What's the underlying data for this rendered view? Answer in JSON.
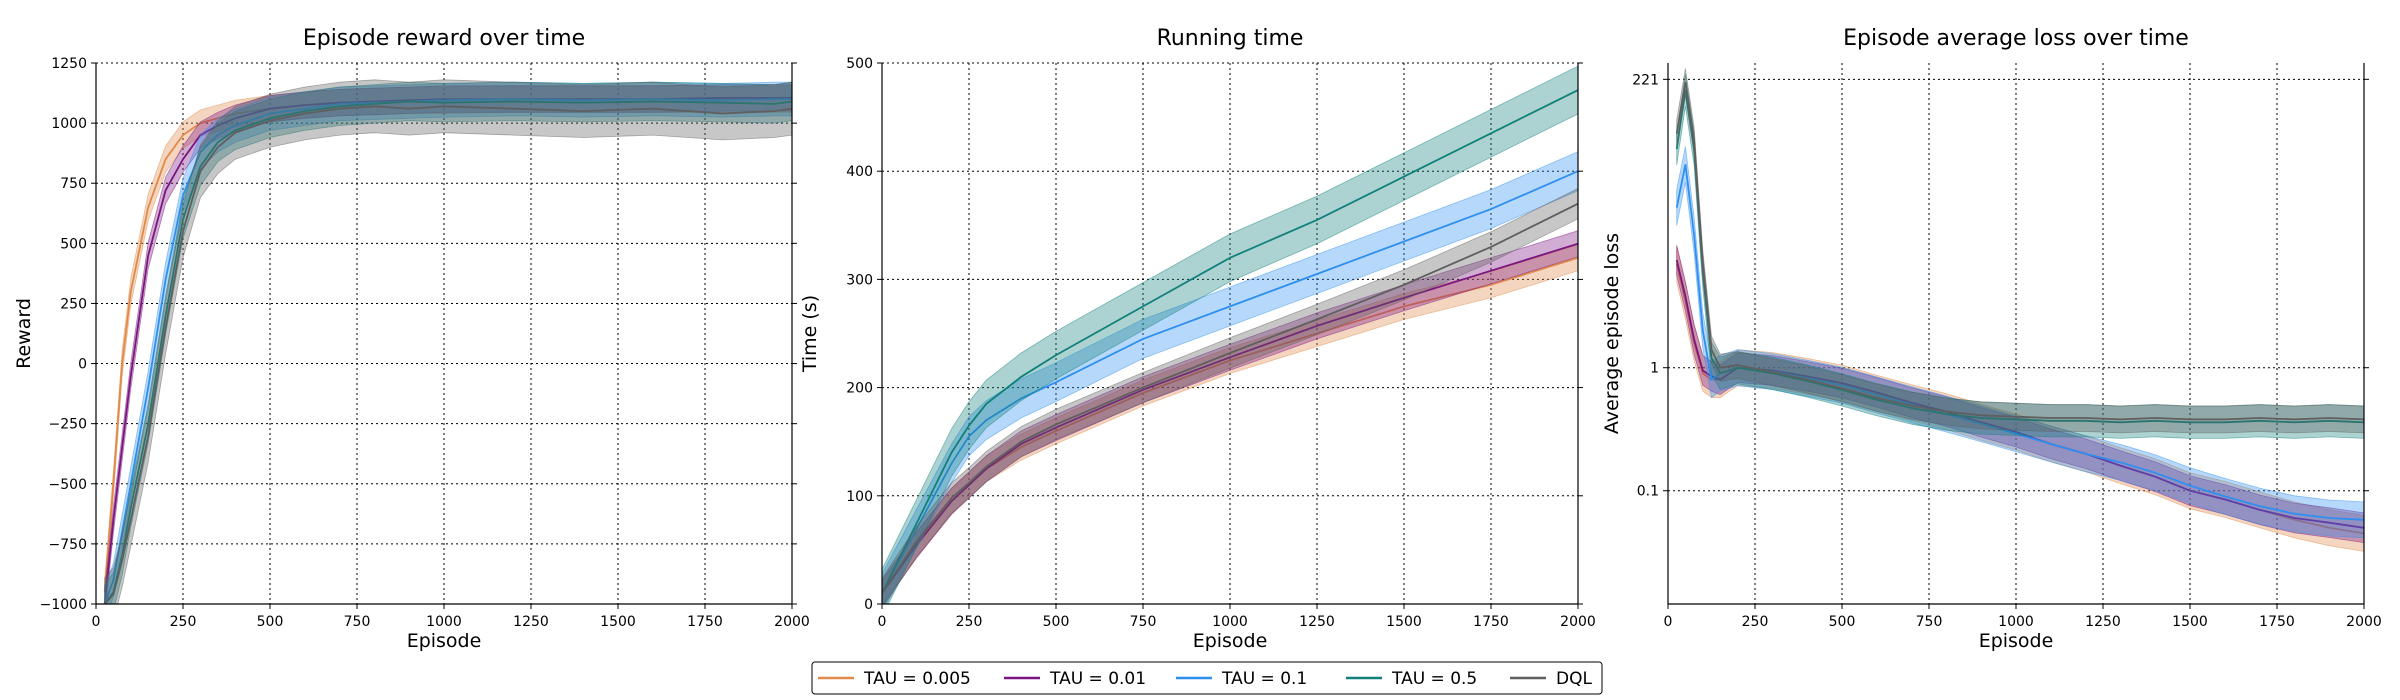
{
  "chart_data": [
    {
      "type": "line",
      "title": "Episode reward over time",
      "xlabel": "Episode",
      "ylabel": "Reward",
      "xlim": [
        0,
        2000
      ],
      "ylim": [
        -1000,
        1250
      ],
      "xticks": [
        0,
        250,
        500,
        750,
        1000,
        1250,
        1500,
        1750,
        2000
      ],
      "xtick_labels": [
        "0",
        "250",
        "500",
        "750",
        "1000",
        "1250",
        "1500",
        "1750",
        "2000"
      ],
      "yticks": [
        -1000,
        -750,
        -500,
        -250,
        0,
        250,
        500,
        750,
        1000,
        1250
      ],
      "ytick_labels": [
        "−1000",
        "−750",
        "−500",
        "−250",
        "0",
        "250",
        "500",
        "750",
        "1000",
        "1250"
      ],
      "grid": true,
      "x": [
        25,
        50,
        75,
        100,
        150,
        200,
        250,
        300,
        350,
        400,
        500,
        600,
        700,
        800,
        900,
        1000,
        1200,
        1400,
        1600,
        1800,
        1950,
        2000
      ],
      "series": [
        {
          "name": "TAU = 0.005",
          "color": "#e08a4a",
          "values": [
            -950,
            -500,
            0,
            300,
            650,
            850,
            950,
            1000,
            1020,
            1040,
            1060,
            1075,
            1085,
            1090,
            1095,
            1095,
            1100,
            1100,
            1100,
            1100,
            1100,
            1100
          ],
          "band": 55
        },
        {
          "name": "TAU = 0.01",
          "color": "#7b1580",
          "values": [
            -1000,
            -650,
            -350,
            -50,
            450,
            720,
            850,
            950,
            990,
            1020,
            1060,
            1075,
            1085,
            1090,
            1095,
            1100,
            1100,
            1100,
            1100,
            1105,
            1105,
            1105
          ],
          "band": 55
        },
        {
          "name": "TAU = 0.1",
          "color": "#2f8ff0",
          "values": [
            -1000,
            -900,
            -700,
            -500,
            -100,
            350,
            700,
            880,
            950,
            990,
            1040,
            1060,
            1080,
            1085,
            1090,
            1095,
            1100,
            1095,
            1100,
            1095,
            1100,
            1100
          ],
          "band": 70
        },
        {
          "name": "TAU = 0.5",
          "color": "#12807a",
          "values": [
            -1000,
            -950,
            -800,
            -600,
            -250,
            200,
            600,
            820,
            920,
            970,
            1020,
            1050,
            1070,
            1080,
            1090,
            1085,
            1090,
            1085,
            1090,
            1085,
            1080,
            1090
          ],
          "band": 80
        },
        {
          "name": "DQL",
          "color": "#5f5f5f",
          "values": [
            -1000,
            -960,
            -820,
            -650,
            -300,
            150,
            550,
            800,
            900,
            960,
            1010,
            1040,
            1060,
            1070,
            1060,
            1070,
            1060,
            1050,
            1060,
            1040,
            1050,
            1060
          ],
          "band": 110
        }
      ]
    },
    {
      "type": "line",
      "title": "Running time",
      "xlabel": "Episode",
      "ylabel": "Time (s)",
      "xlim": [
        0,
        2000
      ],
      "ylim": [
        0,
        500
      ],
      "xticks": [
        0,
        250,
        500,
        750,
        1000,
        1250,
        1500,
        1750,
        2000
      ],
      "xtick_labels": [
        "0",
        "250",
        "500",
        "750",
        "1000",
        "1250",
        "1500",
        "1750",
        "2000"
      ],
      "yticks": [
        0,
        100,
        200,
        300,
        400,
        500
      ],
      "ytick_labels": [
        "0",
        "100",
        "200",
        "300",
        "400",
        "500"
      ],
      "grid": true,
      "x": [
        0,
        100,
        200,
        250,
        300,
        400,
        500,
        750,
        1000,
        1250,
        1500,
        1750,
        2000
      ],
      "series": [
        {
          "name": "TAU = 0.005",
          "color": "#e08a4a",
          "values": [
            10,
            55,
            95,
            110,
            125,
            145,
            160,
            195,
            225,
            250,
            275,
            295,
            320
          ],
          "band": 12
        },
        {
          "name": "TAU = 0.01",
          "color": "#7b1580",
          "values": [
            10,
            55,
            95,
            110,
            125,
            148,
            163,
            198,
            228,
            257,
            283,
            308,
            333
          ],
          "band": 12
        },
        {
          "name": "TAU = 0.1",
          "color": "#2f8ff0",
          "values": [
            10,
            70,
            130,
            155,
            170,
            190,
            205,
            245,
            275,
            305,
            335,
            365,
            400
          ],
          "band": 18
        },
        {
          "name": "TAU = 0.5",
          "color": "#12807a",
          "values": [
            10,
            75,
            140,
            165,
            185,
            210,
            230,
            275,
            320,
            355,
            395,
            435,
            475
          ],
          "band": 22
        },
        {
          "name": "DQL",
          "color": "#5f5f5f",
          "values": [
            10,
            58,
            98,
            112,
            127,
            150,
            166,
            200,
            232,
            263,
            295,
            330,
            370
          ],
          "band": 14
        }
      ]
    },
    {
      "type": "line",
      "title": "Episode average loss over time",
      "xlabel": "Episode",
      "ylabel": "Average episode loss",
      "xlim": [
        0,
        2000
      ],
      "yscale": "log",
      "ylim": [
        0.012,
        300
      ],
      "xticks": [
        0,
        250,
        500,
        750,
        1000,
        1250,
        1500,
        1750,
        2000
      ],
      "xtick_labels": [
        "0",
        "250",
        "500",
        "750",
        "1000",
        "1250",
        "1500",
        "1750",
        "2000"
      ],
      "yticks": [
        0.1,
        1,
        221
      ],
      "ytick_labels": [
        "0.1",
        "1",
        "221"
      ],
      "grid": true,
      "x": [
        25,
        50,
        75,
        100,
        125,
        150,
        200,
        300,
        400,
        500,
        600,
        700,
        800,
        900,
        1000,
        1100,
        1200,
        1300,
        1400,
        1500,
        1600,
        1700,
        1800,
        1900,
        2000
      ],
      "series": [
        {
          "name": "TAU = 0.005",
          "color": "#e08a4a",
          "values": [
            7,
            3.5,
            1.6,
            0.9,
            0.8,
            0.8,
            1.0,
            0.95,
            0.85,
            0.75,
            0.62,
            0.52,
            0.44,
            0.36,
            0.3,
            0.24,
            0.2,
            0.16,
            0.13,
            0.1,
            0.085,
            0.07,
            0.058,
            0.05,
            0.045
          ],
          "band": 0.25
        },
        {
          "name": "TAU = 0.01",
          "color": "#7b1580",
          "values": [
            7.5,
            3.8,
            1.7,
            0.95,
            0.85,
            0.8,
            1.0,
            0.95,
            0.85,
            0.75,
            0.63,
            0.52,
            0.44,
            0.36,
            0.3,
            0.24,
            0.2,
            0.16,
            0.13,
            0.1,
            0.085,
            0.07,
            0.06,
            0.055,
            0.05
          ],
          "band": 0.2
        },
        {
          "name": "TAU = 0.1",
          "color": "#2f8ff0",
          "values": [
            20,
            45,
            12,
            2.0,
            0.8,
            0.9,
            1.0,
            0.93,
            0.82,
            0.72,
            0.6,
            0.5,
            0.42,
            0.35,
            0.29,
            0.24,
            0.2,
            0.17,
            0.14,
            0.11,
            0.09,
            0.075,
            0.065,
            0.06,
            0.058
          ],
          "band": 0.25
        },
        {
          "name": "TAU = 0.5",
          "color": "#12807a",
          "values": [
            60,
            180,
            60,
            6,
            1.2,
            0.9,
            1.0,
            0.9,
            0.78,
            0.66,
            0.55,
            0.47,
            0.42,
            0.39,
            0.38,
            0.37,
            0.37,
            0.36,
            0.37,
            0.36,
            0.36,
            0.37,
            0.36,
            0.37,
            0.36
          ],
          "band": 0.22
        },
        {
          "name": "DQL",
          "color": "#5f5f5f",
          "values": [
            80,
            210,
            70,
            7,
            1.4,
            1.0,
            1.05,
            0.92,
            0.8,
            0.68,
            0.57,
            0.49,
            0.44,
            0.41,
            0.4,
            0.39,
            0.39,
            0.38,
            0.39,
            0.38,
            0.38,
            0.39,
            0.38,
            0.39,
            0.38
          ],
          "band": 0.18
        }
      ]
    }
  ],
  "legend": [
    {
      "label": "TAU = 0.005",
      "color": "#e08a4a"
    },
    {
      "label": "TAU = 0.01",
      "color": "#7b1580"
    },
    {
      "label": "TAU = 0.1",
      "color": "#2f8ff0"
    },
    {
      "label": "TAU = 0.5",
      "color": "#12807a"
    },
    {
      "label": "DQL",
      "color": "#5f5f5f"
    }
  ]
}
